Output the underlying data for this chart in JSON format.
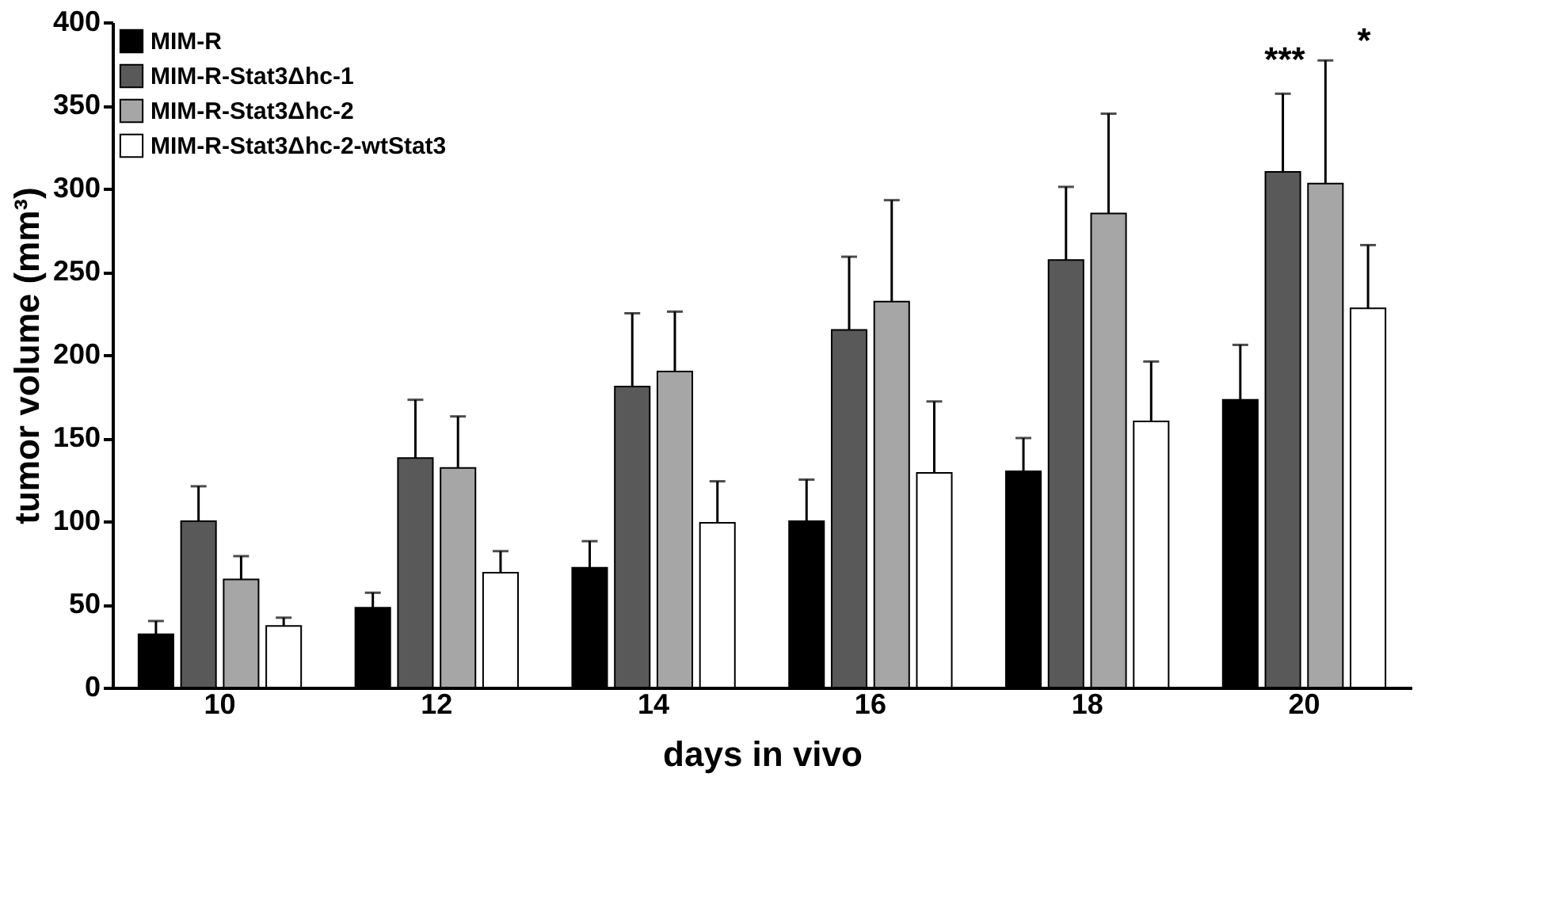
{
  "chart_data": {
    "type": "bar",
    "xlabel": "days in vivo",
    "ylabel": "tumor volume (mm³)",
    "categories": [
      "10",
      "12",
      "14",
      "16",
      "18",
      "20"
    ],
    "series": [
      {
        "name": "MIM-R",
        "color": "#000000",
        "values": [
          32,
          48,
          72,
          100,
          130,
          173
        ],
        "errors": [
          [
            32,
            40
          ],
          [
            48,
            57
          ],
          [
            72,
            88
          ],
          [
            100,
            125
          ],
          [
            130,
            150
          ],
          [
            173,
            206
          ]
        ]
      },
      {
        "name": "MIM-R-Stat3Δhc-1",
        "color": "#595959",
        "values": [
          100,
          138,
          181,
          215,
          257,
          310
        ],
        "errors": [
          [
            100,
            121
          ],
          [
            138,
            173
          ],
          [
            181,
            225
          ],
          [
            215,
            259
          ],
          [
            257,
            301
          ],
          [
            310,
            357
          ]
        ]
      },
      {
        "name": "MIM-R-Stat3Δhc-2",
        "color": "#a6a6a6",
        "values": [
          65,
          132,
          190,
          232,
          285,
          303
        ],
        "errors": [
          [
            65,
            79
          ],
          [
            132,
            163
          ],
          [
            190,
            226
          ],
          [
            232,
            293
          ],
          [
            285,
            345
          ],
          [
            303,
            377
          ]
        ]
      },
      {
        "name": "MIM-R-Stat3Δhc-2-wtStat3",
        "color": "#ffffff",
        "values": [
          37,
          69,
          99,
          129,
          160,
          228
        ],
        "errors": [
          [
            37,
            42
          ],
          [
            69,
            82
          ],
          [
            99,
            124
          ],
          [
            129,
            172
          ],
          [
            160,
            196
          ],
          [
            228,
            266
          ]
        ]
      }
    ],
    "ylim": [
      0,
      400
    ],
    "yticks": [
      0,
      50,
      100,
      150,
      200,
      250,
      300,
      350,
      400
    ],
    "annotations": [
      "***",
      "*"
    ],
    "legend": "top left",
    "grid": false
  }
}
